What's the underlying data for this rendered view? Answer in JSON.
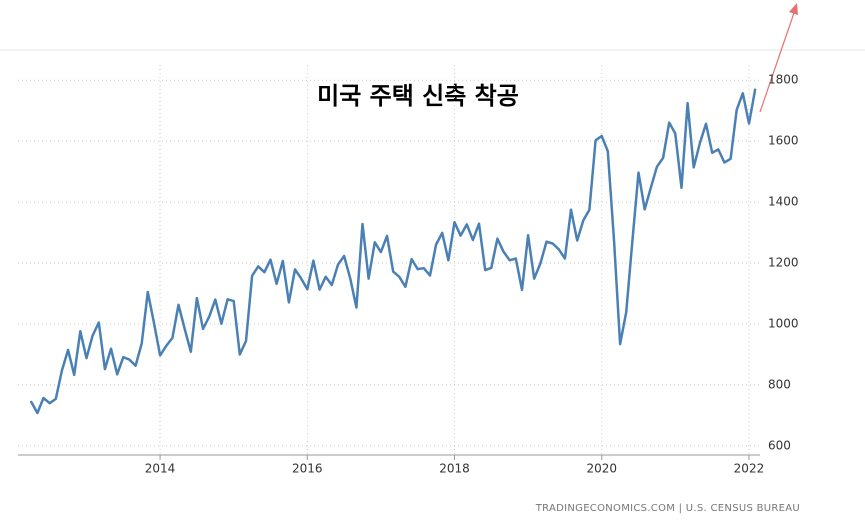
{
  "chart_data": {
    "type": "line",
    "title": "미국 주택 신축 착공",
    "source": "TRADINGECONOMICS.COM | U.S. CENSUS BUREAU",
    "x": [
      2012.25,
      2012.333,
      2012.417,
      2012.5,
      2012.583,
      2012.667,
      2012.75,
      2012.833,
      2012.917,
      2013,
      2013.083,
      2013.167,
      2013.25,
      2013.333,
      2013.417,
      2013.5,
      2013.583,
      2013.667,
      2013.75,
      2013.833,
      2013.917,
      2014,
      2014.083,
      2014.167,
      2014.25,
      2014.333,
      2014.417,
      2014.5,
      2014.583,
      2014.667,
      2014.75,
      2014.833,
      2014.917,
      2015,
      2015.083,
      2015.167,
      2015.25,
      2015.333,
      2015.417,
      2015.5,
      2015.583,
      2015.667,
      2015.75,
      2015.833,
      2015.917,
      2016,
      2016.083,
      2016.167,
      2016.25,
      2016.333,
      2016.417,
      2016.5,
      2016.583,
      2016.667,
      2016.75,
      2016.833,
      2016.917,
      2017,
      2017.083,
      2017.167,
      2017.25,
      2017.333,
      2017.417,
      2017.5,
      2017.583,
      2017.667,
      2017.75,
      2017.833,
      2017.917,
      2018,
      2018.083,
      2018.167,
      2018.25,
      2018.333,
      2018.417,
      2018.5,
      2018.583,
      2018.667,
      2018.75,
      2018.833,
      2018.917,
      2019,
      2019.083,
      2019.167,
      2019.25,
      2019.333,
      2019.417,
      2019.5,
      2019.583,
      2019.667,
      2019.75,
      2019.833,
      2019.917,
      2020,
      2020.083,
      2020.167,
      2020.25,
      2020.333,
      2020.417,
      2020.5,
      2020.583,
      2020.667,
      2020.75,
      2020.833,
      2020.917,
      2021,
      2021.083,
      2021.167,
      2021.25,
      2021.333,
      2021.417,
      2021.5,
      2021.583,
      2021.667,
      2021.75,
      2021.833,
      2021.917,
      2022,
      2022.083
    ],
    "values": [
      744,
      708,
      757,
      740,
      754,
      847,
      915,
      833,
      976,
      888,
      962,
      1005,
      852,
      919,
      835,
      891,
      883,
      863,
      936,
      1105,
      1003,
      897,
      928,
      954,
      1063,
      985,
      909,
      1085,
      984,
      1024,
      1080,
      1001,
      1081,
      1075,
      900,
      944,
      1158,
      1189,
      1170,
      1211,
      1132,
      1207,
      1071,
      1179,
      1149,
      1114,
      1208,
      1113,
      1155,
      1128,
      1195,
      1223,
      1150,
      1054,
      1328,
      1149,
      1268,
      1236,
      1289,
      1172,
      1155,
      1122,
      1213,
      1180,
      1183,
      1159,
      1261,
      1299,
      1209,
      1334,
      1290,
      1327,
      1276,
      1329,
      1177,
      1184,
      1280,
      1237,
      1209,
      1215,
      1112,
      1291,
      1149,
      1199,
      1270,
      1264,
      1245,
      1215,
      1375,
      1274,
      1340,
      1375,
      1603,
      1617,
      1567,
      1276,
      934,
      1038,
      1273,
      1497,
      1376,
      1447,
      1516,
      1545,
      1661,
      1625,
      1447,
      1725,
      1514,
      1594,
      1657,
      1562,
      1573,
      1530,
      1542,
      1703,
      1757,
      1658,
      1769
    ],
    "color": "#4a80b3",
    "xlim": [
      2012.07,
      2022.15
    ],
    "xticks": [
      2014,
      2016,
      2018,
      2020,
      2022
    ],
    "ylim": [
      570,
      1850
    ],
    "yticks": [
      600,
      800,
      1000,
      1200,
      1400,
      1600,
      1800
    ],
    "grid": true
  }
}
